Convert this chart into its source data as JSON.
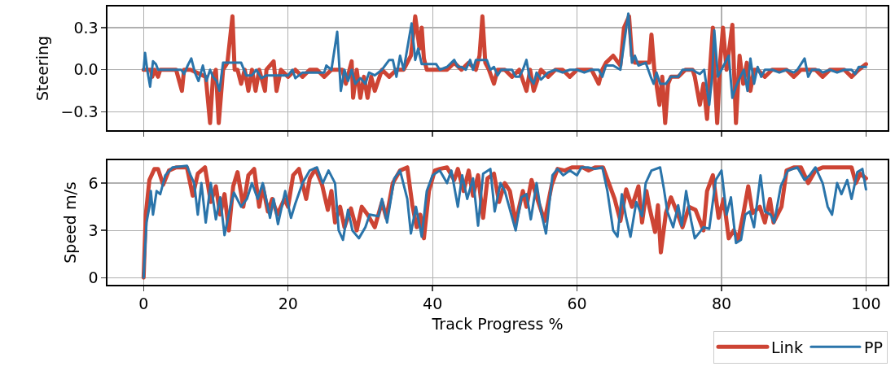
{
  "chart_data": [
    {
      "type": "line",
      "ylabel": "Steering",
      "xlim": [
        -5,
        103
      ],
      "xticks": [
        0,
        20,
        40,
        60,
        80,
        100
      ],
      "ylim": [
        -0.43,
        0.45
      ],
      "yticks": [
        {
          "value": -0.3,
          "label": "−0.3"
        },
        {
          "value": 0,
          "label": "0.0"
        },
        {
          "value": 0.3,
          "label": "0.3"
        }
      ],
      "grid": true,
      "tick_labels": "y",
      "series": [
        {
          "color": "#cd4434",
          "x": [
            0,
            1,
            1.2,
            1.5,
            2,
            2.3,
            4.5,
            5.3,
            5.6,
            6.5,
            8.6,
            9.2,
            9.6,
            10,
            10.4,
            11,
            11.6,
            12.3,
            12.6,
            13,
            13.5,
            14,
            14.5,
            15,
            15.5,
            16,
            16.8,
            17,
            18,
            18.4,
            19,
            20,
            21,
            22,
            23,
            24,
            25,
            26,
            27.5,
            28,
            28.8,
            29,
            29.5,
            30,
            30.5,
            31,
            31.5,
            32,
            33,
            34,
            35,
            36,
            37,
            37.6,
            38.2,
            38.5,
            38.8,
            39.2,
            40,
            42,
            43,
            44,
            45,
            46,
            46.5,
            46.9,
            47.3,
            47.8,
            48.5,
            49,
            50,
            51,
            52,
            53,
            53.5,
            54,
            55,
            56,
            57,
            58,
            59,
            60,
            62,
            63,
            63.5,
            64,
            65,
            66,
            66.5,
            67.2,
            67.6,
            68,
            69,
            70,
            70.3,
            70.7,
            71.4,
            71.8,
            72.2,
            72.6,
            73,
            74,
            75,
            76,
            76.3,
            77,
            77.5,
            78,
            78.4,
            78.8,
            79,
            79.4,
            79.8,
            80.2,
            80.7,
            81.5,
            82,
            82.5,
            83,
            83.5,
            84,
            84.5,
            85,
            86,
            87,
            88,
            89,
            90,
            91,
            93,
            94,
            95,
            97,
            98,
            99,
            100
          ],
          "values": [
            0,
            0,
            -0.05,
            0,
            -0.05,
            0,
            0,
            -0.15,
            0,
            0,
            -0.05,
            -0.38,
            -0.05,
            0,
            -0.38,
            0,
            0.05,
            0.38,
            0,
            0,
            -0.1,
            0,
            -0.15,
            0,
            -0.15,
            0,
            -0.15,
            0,
            0.06,
            -0.15,
            0,
            -0.05,
            0,
            -0.05,
            0,
            0,
            -0.05,
            0,
            0,
            -0.1,
            0.06,
            -0.2,
            0,
            -0.2,
            -0.05,
            -0.2,
            -0.05,
            -0.15,
            0,
            -0.05,
            0,
            0,
            0.1,
            0.38,
            0.15,
            0.3,
            0.08,
            0,
            0,
            0,
            0.05,
            0,
            0.05,
            0,
            0.1,
            0.38,
            0.05,
            0,
            -0.1,
            0,
            0,
            -0.05,
            0,
            -0.15,
            0,
            -0.15,
            0,
            -0.05,
            0,
            0,
            -0.05,
            0,
            0,
            -0.1,
            0,
            0.05,
            0.1,
            0.03,
            0.3,
            0.38,
            0.1,
            0.05,
            0.05,
            0.05,
            0.25,
            0,
            -0.25,
            -0.05,
            -0.38,
            -0.1,
            -0.05,
            -0.05,
            0,
            0,
            -0.05,
            -0.25,
            -0.1,
            -0.35,
            0,
            0.3,
            0,
            -0.38,
            0.05,
            0.3,
            0,
            0.32,
            -0.38,
            0.1,
            -0.1,
            0.05,
            -0.15,
            0,
            0,
            -0.05,
            0,
            0,
            0,
            -0.05,
            0,
            0,
            -0.05,
            0,
            0,
            -0.05,
            0,
            0.04
          ]
        },
        {
          "color": "#2a74aa",
          "x": [
            0,
            0.2,
            0.5,
            0.9,
            1.3,
            1.7,
            2,
            5.2,
            5.6,
            6.1,
            6.6,
            7.1,
            7.6,
            8.2,
            8.7,
            9.2,
            9.6,
            10.1,
            10.5,
            11,
            13.5,
            14.2,
            15,
            15.6,
            16.3,
            17,
            20,
            20.6,
            21,
            22,
            25,
            25.3,
            26,
            26.8,
            27.3,
            27.8,
            28.3,
            28.8,
            29.3,
            30,
            30.7,
            31.2,
            32,
            33,
            34,
            34.5,
            35,
            35.5,
            36,
            36.5,
            37.1,
            37.6,
            38,
            38.5,
            40.5,
            41,
            42,
            43,
            43.5,
            44,
            44.6,
            45.2,
            45.6,
            46,
            47.5,
            48,
            48.5,
            49,
            49.5,
            51,
            51.5,
            52,
            52.5,
            53,
            53.4,
            54,
            54.4,
            55,
            56,
            57,
            58,
            59,
            60,
            61,
            62,
            63,
            63.5,
            64,
            65,
            66,
            66.6,
            67.1,
            67.6,
            68,
            68.5,
            69.5,
            70.2,
            70.6,
            71,
            71.5,
            72.3,
            73,
            74,
            74.6,
            76,
            76.6,
            77,
            77.6,
            78.3,
            78.7,
            79,
            79.5,
            80.3,
            81,
            81.5,
            82,
            82.6,
            83.1,
            83.6,
            84,
            84.5,
            85,
            85.5,
            86,
            87,
            88,
            89,
            90,
            90.5,
            91.5,
            92,
            92.5,
            93.5,
            94,
            95,
            96,
            97,
            98,
            98.5,
            99,
            100
          ],
          "values": [
            0,
            0.12,
            0,
            -0.12,
            0.06,
            0.04,
            0,
            0,
            -0.03,
            0.03,
            0.08,
            -0.02,
            -0.08,
            0.03,
            -0.08,
            0,
            -0.05,
            -0.08,
            -0.15,
            0.05,
            0.05,
            -0.04,
            -0.04,
            0,
            -0.06,
            -0.04,
            -0.04,
            0,
            -0.06,
            -0.02,
            -0.02,
            0.03,
            0,
            0.27,
            -0.15,
            0,
            -0.08,
            0,
            -0.1,
            -0.06,
            -0.1,
            -0.02,
            -0.04,
            0,
            0.07,
            0.07,
            -0.05,
            0.1,
            0,
            0.15,
            0.33,
            0.07,
            0.15,
            0.04,
            0.04,
            0,
            0.02,
            0.07,
            0.02,
            0.02,
            0,
            0.07,
            0,
            0.07,
            0.07,
            0,
            0.02,
            -0.04,
            0,
            0,
            -0.05,
            -0.05,
            0,
            0.07,
            -0.05,
            -0.1,
            -0.02,
            -0.07,
            -0.02,
            0,
            -0.02,
            0,
            0,
            -0.02,
            0,
            0,
            -0.05,
            0.03,
            0.03,
            0,
            0.22,
            0.4,
            0.05,
            0.1,
            0.03,
            0.05,
            -0.05,
            -0.1,
            -0.02,
            -0.1,
            -0.1,
            -0.05,
            -0.05,
            0,
            0,
            -0.02,
            -0.03,
            0,
            -0.25,
            -0.05,
            0.28,
            -0.05,
            0.03,
            0.1,
            -0.2,
            -0.12,
            -0.05,
            0,
            -0.15,
            0.08,
            -0.1,
            0.02,
            -0.05,
            0,
            0,
            -0.02,
            0,
            -0.02,
            0,
            0.08,
            -0.05,
            0,
            0,
            -0.02,
            0,
            -0.02,
            0,
            0,
            -0.03,
            0.02,
            0.02
          ]
        }
      ]
    },
    {
      "type": "line",
      "xlabel": "Track Progress %",
      "ylabel": "Speed m/s",
      "xlim": [
        -5,
        103
      ],
      "xticks": [
        0,
        20,
        40,
        60,
        80,
        100
      ],
      "ylim": [
        -0.45,
        7.45
      ],
      "yticks": [
        0,
        3,
        6
      ],
      "grid": true,
      "legend": "bottom right",
      "series": [
        {
          "name": "Link",
          "color": "#cd4434",
          "x": [
            0,
            0.3,
            0.8,
            1.5,
            2,
            2.7,
            3.5,
            4.5,
            6,
            6.8,
            7.5,
            8.5,
            9.3,
            10,
            10.6,
            11.2,
            11.8,
            12.4,
            13,
            13.8,
            14.5,
            15.3,
            16,
            16.5,
            17.2,
            17.8,
            18.5,
            19.5,
            20,
            20.7,
            21.5,
            22.5,
            23,
            23.8,
            24.7,
            25.5,
            26,
            26.5,
            27.2,
            27.8,
            28.7,
            29.5,
            30.2,
            31,
            32,
            33,
            33.6,
            34.5,
            35.5,
            36.5,
            37.2,
            37.8,
            38.3,
            38.8,
            39.5,
            40.3,
            41,
            42,
            43,
            43.5,
            44.3,
            45,
            45.6,
            46.3,
            47,
            47.6,
            48.5,
            49.2,
            50,
            50.7,
            51.5,
            52.5,
            53,
            53.7,
            54.5,
            55.5,
            56.5,
            57.3,
            58.3,
            59.3,
            60.8,
            61.6,
            62.5,
            63.6,
            64.4,
            65.2,
            66,
            66.8,
            67.6,
            68.5,
            69,
            69.6,
            70,
            70.8,
            71.2,
            71.6,
            72.3,
            73,
            73.8,
            74.6,
            75.5,
            76.4,
            77.5,
            78,
            78.8,
            79.6,
            80.3,
            81,
            81.7,
            82.3,
            83,
            83.7,
            84.3,
            85.3,
            86,
            86.7,
            87.2,
            88.3,
            89,
            90,
            91,
            92,
            93,
            94,
            95,
            96.5,
            98,
            98.6,
            99.2,
            100
          ],
          "values": [
            0,
            4,
            6.2,
            6.9,
            6.9,
            5.9,
            6.8,
            7,
            7,
            5.2,
            6.6,
            7,
            4.8,
            5.8,
            4,
            5.3,
            3,
            5.8,
            6.7,
            4.5,
            6.5,
            6.9,
            4.5,
            5.8,
            4.2,
            5,
            4,
            5,
            4.5,
            6.5,
            6.9,
            5,
            6.3,
            6.9,
            5.9,
            4.3,
            5.5,
            3.5,
            4.5,
            3.2,
            4.4,
            3,
            4.5,
            4,
            3.2,
            4.8,
            3.8,
            6,
            6.8,
            7,
            4.6,
            3.2,
            4,
            2.5,
            5.5,
            6.8,
            6.9,
            7,
            6.2,
            6.9,
            5.5,
            6.8,
            5.2,
            6.5,
            3.8,
            6.3,
            6.6,
            4.8,
            6,
            5.5,
            3.5,
            5.5,
            4.5,
            6.2,
            5,
            3.6,
            5.9,
            6.9,
            6.8,
            7,
            7,
            6.8,
            7,
            7,
            6,
            5,
            3.6,
            5.6,
            4.5,
            5.8,
            3.5,
            5.5,
            4.5,
            2.9,
            4.6,
            1.6,
            4.1,
            5.1,
            4.2,
            3.2,
            4.5,
            4.3,
            3,
            5.5,
            6.5,
            3.8,
            5,
            2.5,
            3,
            2.4,
            4,
            5.8,
            4.1,
            4.5,
            3.5,
            5,
            3.5,
            4.5,
            6.8,
            7,
            7,
            6,
            6.8,
            7,
            7,
            7,
            7,
            6,
            6.6,
            6.3
          ]
        },
        {
          "name": "PP",
          "color": "#2a74aa",
          "x": [
            0,
            0.4,
            0.8,
            1,
            1.3,
            1.8,
            2.3,
            3,
            4,
            6,
            6.5,
            7,
            7.5,
            8,
            8.6,
            9.3,
            10,
            10.6,
            11.2,
            12,
            12.5,
            13.5,
            14.3,
            15,
            15.8,
            16.5,
            17.5,
            18,
            18.6,
            19.6,
            20.4,
            21,
            22,
            23,
            24,
            24.8,
            25.6,
            26.5,
            27,
            27.6,
            28.3,
            28.9,
            29.8,
            30.7,
            31.3,
            32.5,
            33,
            33.7,
            34.7,
            35.5,
            36.5,
            37,
            37.7,
            38.5,
            39.2,
            40,
            41,
            42,
            42.6,
            43.5,
            44.1,
            44.8,
            45.6,
            46.3,
            47,
            48,
            48.6,
            49.4,
            50,
            50.6,
            51.5,
            52.3,
            53,
            53.6,
            54.4,
            55,
            55.7,
            56.6,
            57.3,
            58.1,
            59,
            60,
            60.6,
            61.5,
            62.5,
            63.5,
            64.2,
            65,
            65.6,
            66.2,
            66.8,
            67.4,
            68.2,
            69,
            69.5,
            70.3,
            71.5,
            72,
            72.5,
            73.3,
            74,
            74.5,
            75.1,
            75.8,
            76.3,
            77,
            77.5,
            78.3,
            79.2,
            80,
            80.7,
            81.3,
            82,
            82.7,
            83.3,
            83.9,
            84.5,
            85.4,
            86,
            86.8,
            87.3,
            88.2,
            89.2,
            90.5,
            91.5,
            92.2,
            93,
            94,
            94.7,
            95.3,
            96,
            96.6,
            97.4,
            98,
            98.8,
            99.5,
            100
          ],
          "values": [
            0,
            3.5,
            4.5,
            5.5,
            4,
            5.5,
            5.3,
            6.5,
            7,
            7.1,
            6.5,
            6,
            4,
            6,
            3.5,
            6,
            3.7,
            5.1,
            2.7,
            4.5,
            5.4,
            4.5,
            5,
            6,
            5,
            6,
            3.8,
            5,
            3.4,
            5.5,
            3.8,
            4.7,
            6,
            6.8,
            7,
            6,
            6.8,
            6,
            3,
            2.4,
            4.3,
            3,
            2.5,
            3.2,
            4,
            3.9,
            5,
            3.5,
            6.3,
            6.8,
            5,
            2.8,
            4.5,
            2.6,
            5.5,
            6.5,
            6.8,
            6,
            6.8,
            4.5,
            6.5,
            5,
            6.3,
            3.3,
            6.6,
            6.9,
            4.2,
            6,
            5.5,
            4.5,
            3,
            5.1,
            5.3,
            3.7,
            6,
            4.2,
            2.8,
            6.5,
            6.9,
            6.5,
            6.8,
            6.5,
            7,
            7,
            6.9,
            7,
            5.5,
            3,
            2.6,
            5.3,
            3.8,
            2.6,
            4.8,
            3.9,
            6,
            6.8,
            7,
            5.7,
            4.2,
            3.2,
            4.6,
            3.3,
            5.5,
            3.6,
            2.5,
            2.9,
            3.2,
            3.1,
            6.2,
            6.8,
            4,
            5.1,
            2.2,
            2.4,
            4,
            4.2,
            3.2,
            6.5,
            4.2,
            4,
            3.5,
            5.8,
            6.8,
            7,
            6.2,
            6.5,
            7,
            6,
            4.5,
            4,
            6,
            5.3,
            6.2,
            5,
            6.7,
            6.9,
            5.6
          ]
        }
      ]
    }
  ]
}
